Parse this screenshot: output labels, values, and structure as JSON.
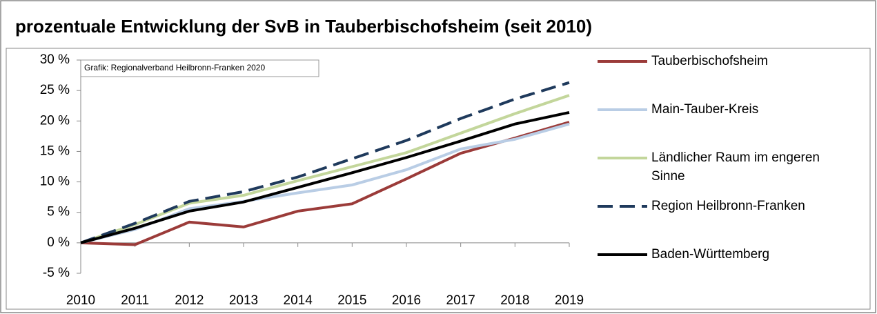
{
  "chart_data": {
    "type": "line",
    "title": "prozentuale Entwicklung der SvB in Tauberbischofsheim (seit 2010)",
    "annotation": "Grafik: Regionalverband Heilbronn-Franken 2020",
    "categories": [
      "2010",
      "2011",
      "2012",
      "2013",
      "2014",
      "2015",
      "2016",
      "2017",
      "2018",
      "2019"
    ],
    "ylim": [
      -5,
      30
    ],
    "yticks": [
      {
        "value": -5,
        "label": "-5 %"
      },
      {
        "value": 0,
        "label": "0 %"
      },
      {
        "value": 5,
        "label": "5 %"
      },
      {
        "value": 10,
        "label": "10 %"
      },
      {
        "value": 15,
        "label": "15 %"
      },
      {
        "value": 20,
        "label": "20 %"
      },
      {
        "value": 25,
        "label": "25 %"
      },
      {
        "value": 30,
        "label": "30 %"
      }
    ],
    "grid": false,
    "legend": "right",
    "series": [
      {
        "name": "Tauberbischofsheim",
        "color": "#9b3b39",
        "dashed": false,
        "values": [
          0,
          -0.3,
          3.4,
          2.6,
          5.2,
          6.4,
          10.5,
          14.7,
          17.2,
          19.8
        ]
      },
      {
        "name": "Main-Tauber-Kreis",
        "color": "#b9cde5",
        "dashed": false,
        "values": [
          0,
          2.2,
          5.6,
          6.8,
          8.2,
          9.5,
          12.0,
          15.4,
          17.0,
          19.5
        ]
      },
      {
        "name": "Ländlicher Raum im engeren Sinne",
        "color": "#c3d69b",
        "dashed": false,
        "values": [
          0,
          3.0,
          6.5,
          7.8,
          10.2,
          12.5,
          14.8,
          18.0,
          21.2,
          24.2
        ]
      },
      {
        "name": "Region Heilbronn-Franken",
        "color": "#1f3a5c",
        "dashed": true,
        "values": [
          0,
          3.2,
          6.8,
          8.4,
          10.8,
          13.8,
          16.8,
          20.4,
          23.6,
          26.3
        ]
      },
      {
        "name": "Baden-Württemberg",
        "color": "#000000",
        "dashed": false,
        "values": [
          0,
          2.4,
          5.2,
          6.7,
          9.1,
          11.5,
          14.0,
          16.7,
          19.5,
          21.4
        ]
      }
    ]
  }
}
